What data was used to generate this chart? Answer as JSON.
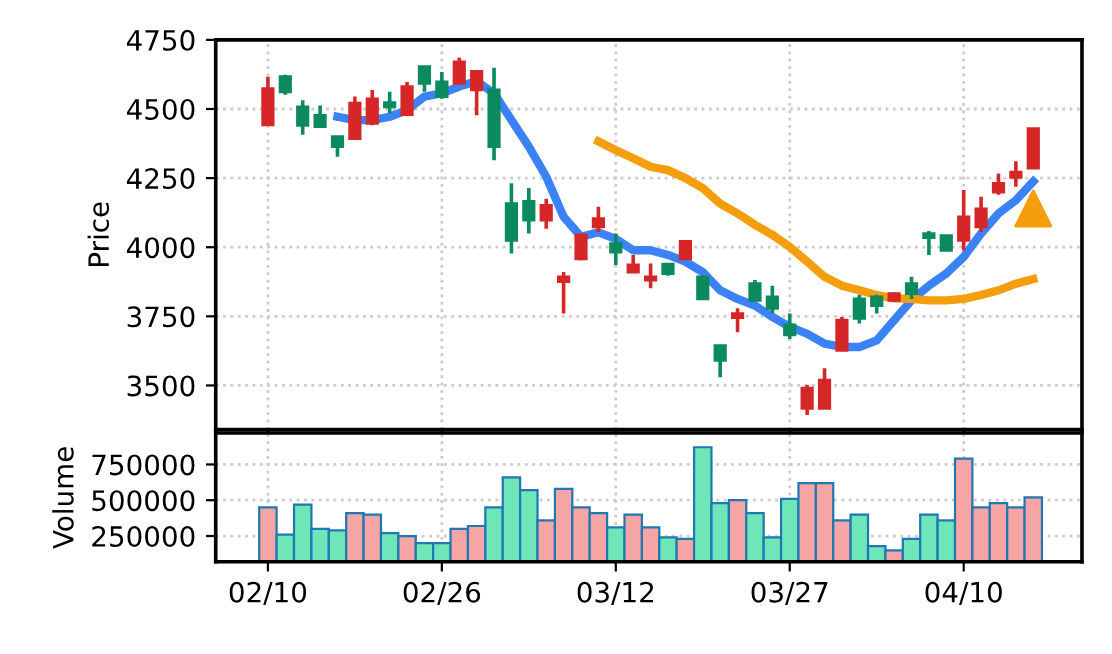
{
  "chart_data": [
    {
      "type": "candlestick",
      "ylabel": "Price",
      "categories": [
        null,
        null,
        null,
        null,
        null,
        null,
        null,
        null,
        null,
        null,
        null,
        null,
        null,
        null,
        null,
        null,
        null,
        null,
        null,
        null,
        null,
        null,
        null,
        null,
        null,
        null,
        null,
        null,
        null,
        null,
        null,
        null,
        null,
        null,
        null,
        null,
        null,
        null,
        null,
        null,
        null,
        null,
        null,
        null,
        null
      ],
      "ohlc": [
        [
          4443,
          4617,
          4443,
          4574
        ],
        [
          4617,
          4624,
          4552,
          4562
        ],
        [
          4508,
          4532,
          4407,
          4441
        ],
        [
          4477,
          4513,
          4436,
          4436
        ],
        [
          4400,
          4400,
          4327,
          4364
        ],
        [
          4393,
          4545,
          4393,
          4521
        ],
        [
          4448,
          4569,
          4441,
          4537
        ],
        [
          4523,
          4562,
          4484,
          4508
        ],
        [
          4480,
          4598,
          4480,
          4581
        ],
        [
          4653,
          4653,
          4562,
          4593
        ],
        [
          4598,
          4634,
          4537,
          4545
        ],
        [
          4593,
          4685,
          4593,
          4670
        ],
        [
          4569,
          4641,
          4477,
          4636
        ],
        [
          4569,
          4649,
          4315,
          4364
        ],
        [
          4158,
          4231,
          3977,
          4025
        ],
        [
          4166,
          4214,
          4050,
          4098
        ],
        [
          4098,
          4175,
          4067,
          4151
        ],
        [
          3876,
          3910,
          3760,
          3893
        ],
        [
          3958,
          4045,
          3953,
          4045
        ],
        [
          4074,
          4146,
          4055,
          4103
        ],
        [
          4013,
          4050,
          3936,
          3982
        ],
        [
          3910,
          3972,
          3910,
          3936
        ],
        [
          3881,
          3941,
          3852,
          3893
        ],
        [
          3939,
          3939,
          3897,
          3905
        ],
        [
          3958,
          4021,
          3958,
          4021
        ],
        [
          3893,
          3893,
          3813,
          3813
        ],
        [
          3644,
          3644,
          3530,
          3591
        ],
        [
          3745,
          3779,
          3692,
          3760
        ],
        [
          3868,
          3881,
          3808,
          3808
        ],
        [
          3820,
          3861,
          3760,
          3779
        ],
        [
          3719,
          3760,
          3668,
          3683
        ],
        [
          3417,
          3502,
          3393,
          3490
        ],
        [
          3417,
          3562,
          3417,
          3519
        ],
        [
          3627,
          3748,
          3627,
          3736
        ],
        [
          3813,
          3828,
          3724,
          3743
        ],
        [
          3820,
          3828,
          3760,
          3789
        ],
        [
          3808,
          3837,
          3803,
          3832
        ],
        [
          3868,
          3893,
          3813,
          3832
        ],
        [
          4049,
          4059,
          3972,
          4035
        ],
        [
          4042,
          4042,
          3989,
          3989
        ],
        [
          4025,
          4207,
          3989,
          4110
        ],
        [
          4074,
          4183,
          4055,
          4139
        ],
        [
          4199,
          4267,
          4190,
          4231
        ],
        [
          4253,
          4311,
          4219,
          4272
        ],
        [
          4286,
          4429,
          4286,
          4429
        ]
      ],
      "colors": [
        "#d62728",
        "#0b8a5f",
        "#0b8a5f",
        "#0b8a5f",
        "#0b8a5f",
        "#d62728",
        "#d62728",
        "#0b8a5f",
        "#d62728",
        "#0b8a5f",
        "#0b8a5f",
        "#d62728",
        "#d62728",
        "#0b8a5f",
        "#0b8a5f",
        "#0b8a5f",
        "#d62728",
        "#d62728",
        "#d62728",
        "#d62728",
        "#0b8a5f",
        "#d62728",
        "#d62728",
        "#0b8a5f",
        "#d62728",
        "#0b8a5f",
        "#0b8a5f",
        "#d62728",
        "#0b8a5f",
        "#0b8a5f",
        "#0b8a5f",
        "#d62728",
        "#d62728",
        "#d62728",
        "#0b8a5f",
        "#0b8a5f",
        "#d62728",
        "#0b8a5f",
        "#0b8a5f",
        "#0b8a5f",
        "#d62728",
        "#d62728",
        "#d62728",
        "#d62728",
        "#d62728"
      ],
      "series": [
        {
          "type": "line",
          "color": "#3b82f6",
          "values": [
            null,
            null,
            null,
            null,
            4472,
            4460,
            4460,
            4472,
            4496,
            4545,
            4557,
            4581,
            4600,
            4557,
            4460,
            4364,
            4255,
            4110,
            4038,
            4054,
            4030,
            3989,
            3989,
            3972,
            3948,
            3910,
            3844,
            3813,
            3789,
            3748,
            3712,
            3687,
            3651,
            3639,
            3639,
            3663,
            3736,
            3808,
            3861,
            3905,
            3965,
            4050,
            4122,
            4170,
            4238
          ]
        },
        {
          "type": "line",
          "color": "#f59e0b",
          "values": [
            null,
            null,
            null,
            null,
            null,
            null,
            null,
            null,
            null,
            null,
            null,
            null,
            null,
            null,
            null,
            null,
            null,
            null,
            null,
            4383,
            4351,
            4322,
            4291,
            4279,
            4250,
            4214,
            4158,
            4122,
            4081,
            4045,
            4001,
            3948,
            3893,
            3861,
            3844,
            3827,
            3815,
            3813,
            3808,
            3808,
            3813,
            3827,
            3844,
            3868,
            3885
          ]
        },
        {
          "type": "scatter",
          "color": "#f59e0b",
          "marker": "triangle",
          "values": [
            null,
            null,
            null,
            null,
            null,
            null,
            null,
            null,
            null,
            null,
            null,
            null,
            null,
            null,
            null,
            null,
            null,
            null,
            null,
            null,
            null,
            null,
            null,
            null,
            null,
            null,
            null,
            null,
            null,
            null,
            null,
            null,
            null,
            null,
            null,
            null,
            null,
            null,
            null,
            null,
            null,
            null,
            null,
            null,
            4140
          ]
        }
      ],
      "ylim": [
        3340,
        4750
      ],
      "yticks": [
        3500,
        3750,
        4000,
        4250,
        4500,
        4750
      ],
      "grid": true,
      "tick_labels": "y"
    },
    {
      "type": "bar",
      "ylabel": "Volume",
      "categories": [
        "02/10",
        null,
        null,
        null,
        null,
        null,
        null,
        null,
        null,
        null,
        "02/26",
        null,
        null,
        null,
        null,
        null,
        null,
        null,
        null,
        null,
        "03/12",
        null,
        null,
        null,
        null,
        null,
        null,
        null,
        null,
        null,
        "03/27",
        null,
        null,
        null,
        null,
        null,
        null,
        null,
        null,
        null,
        "04/10",
        null,
        null,
        null,
        null
      ],
      "values": [
        450000,
        260000,
        470000,
        300000,
        290000,
        410000,
        400000,
        270000,
        250000,
        200000,
        200000,
        300000,
        320000,
        450000,
        660000,
        570000,
        360000,
        580000,
        450000,
        410000,
        310000,
        400000,
        310000,
        240000,
        230000,
        870000,
        480000,
        500000,
        410000,
        240000,
        510000,
        620000,
        620000,
        360000,
        400000,
        180000,
        150000,
        230000,
        400000,
        360000,
        790000,
        450000,
        480000,
        450000,
        520000
      ],
      "colors": [
        "#f6a5a5",
        "#6ee6b8",
        "#6ee6b8",
        "#6ee6b8",
        "#6ee6b8",
        "#f6a5a5",
        "#f6a5a5",
        "#6ee6b8",
        "#f6a5a5",
        "#6ee6b8",
        "#6ee6b8",
        "#f6a5a5",
        "#f6a5a5",
        "#6ee6b8",
        "#6ee6b8",
        "#6ee6b8",
        "#f6a5a5",
        "#f6a5a5",
        "#f6a5a5",
        "#f6a5a5",
        "#6ee6b8",
        "#f6a5a5",
        "#f6a5a5",
        "#6ee6b8",
        "#f6a5a5",
        "#6ee6b8",
        "#6ee6b8",
        "#f6a5a5",
        "#6ee6b8",
        "#6ee6b8",
        "#6ee6b8",
        "#f6a5a5",
        "#f6a5a5",
        "#f6a5a5",
        "#6ee6b8",
        "#6ee6b8",
        "#f6a5a5",
        "#6ee6b8",
        "#6ee6b8",
        "#6ee6b8",
        "#f6a5a5",
        "#f6a5a5",
        "#f6a5a5",
        "#f6a5a5",
        "#f6a5a5"
      ],
      "ylim": [
        70000,
        970000
      ],
      "yticks": [
        250000,
        500000,
        750000
      ],
      "grid": true
    }
  ]
}
